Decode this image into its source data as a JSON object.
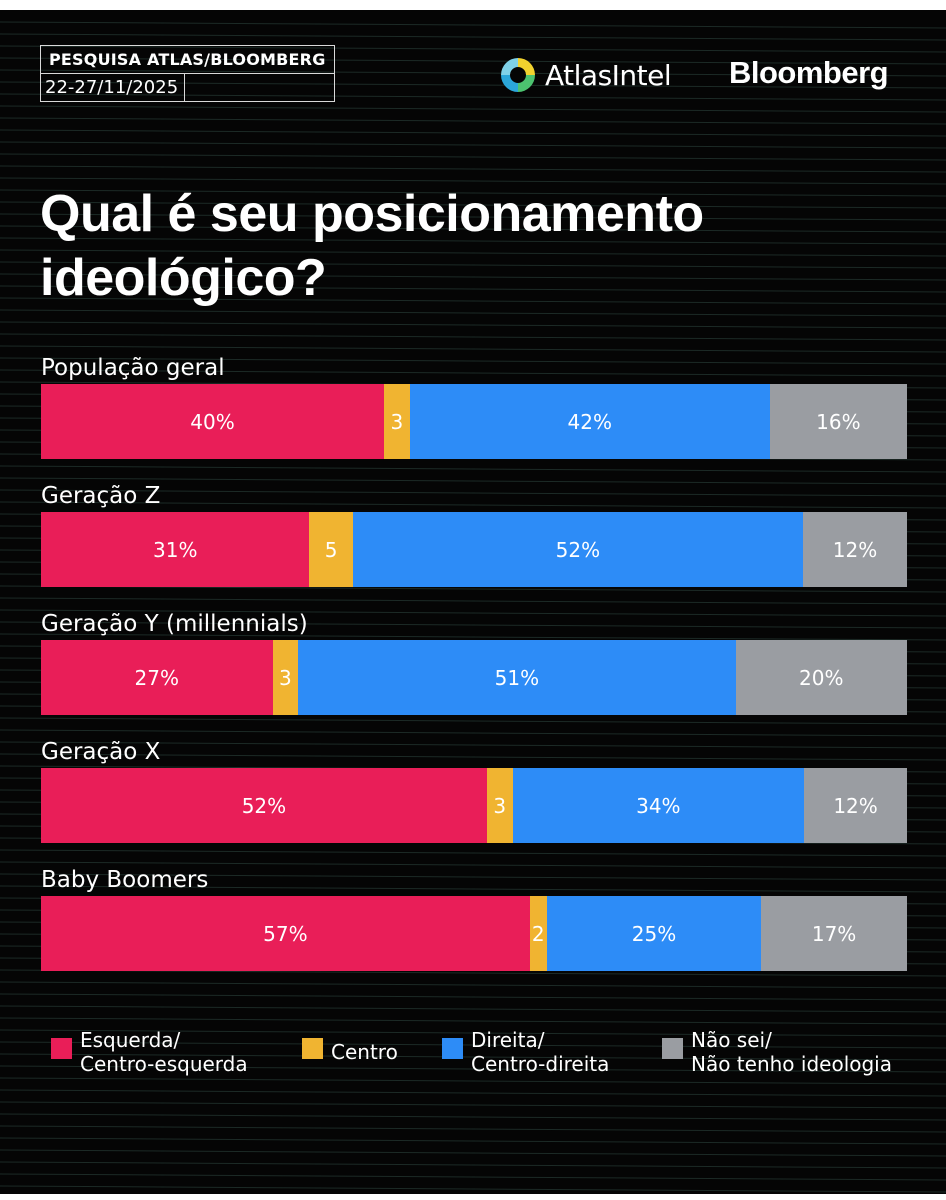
{
  "header": {
    "survey_label": "PESQUISA ATLAS/BLOOMBERG",
    "date_label": "22-27/11/2025",
    "brand_atlas": "AtlasIntel",
    "brand_bloomberg": "Bloomberg"
  },
  "colors": {
    "esquerda": "#e91e58",
    "centro": "#f0b431",
    "direita": "#2d8cf7",
    "nao_sei": "#9a9da2"
  },
  "chart_data": {
    "type": "bar",
    "stacked": true,
    "orientation": "horizontal",
    "title": "Qual é seu posicionamento ideológico?",
    "categories": [
      "População geral",
      "Geração Z",
      "Geração Y (millennials)",
      "Geração X",
      "Baby Boomers"
    ],
    "series": [
      {
        "name": "Esquerda/ Centro-esquerda",
        "values": [
          40,
          31,
          27,
          52,
          57
        ],
        "labels": [
          "40%",
          "31%",
          "27%",
          "52%",
          "57%"
        ]
      },
      {
        "name": "Centro",
        "values": [
          3,
          5,
          3,
          3,
          2
        ],
        "labels": [
          "3",
          "5",
          "3",
          "3",
          "2"
        ]
      },
      {
        "name": "Direita/ Centro-direita",
        "values": [
          42,
          52,
          51,
          34,
          25
        ],
        "labels": [
          "42%",
          "52%",
          "51%",
          "34%",
          "25%"
        ]
      },
      {
        "name": "Não sei/ Não tenho ideologia",
        "values": [
          16,
          12,
          20,
          12,
          17
        ],
        "labels": [
          "16%",
          "12%",
          "20%",
          "12%",
          "17%"
        ]
      }
    ],
    "legend": {
      "position": "bottom",
      "items": [
        {
          "line1": "Esquerda/",
          "line2": "Centro-esquerda"
        },
        {
          "line1": "Centro",
          "line2": ""
        },
        {
          "line1": "Direita/",
          "line2": "Centro-direita"
        },
        {
          "line1": "Não sei/",
          "line2": "Não tenho ideologia"
        }
      ]
    }
  }
}
